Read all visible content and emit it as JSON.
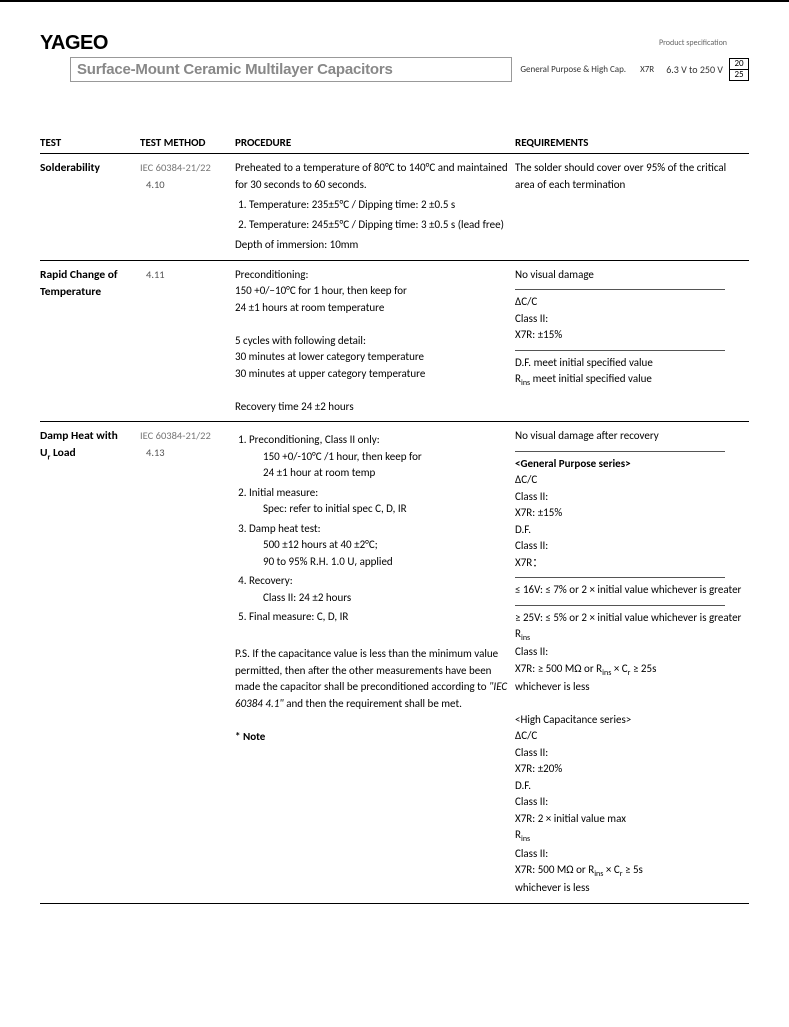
{
  "header": {
    "logo": "YAGEO",
    "title": "Surface-Mount Ceramic Multilayer Capacitors",
    "subtitle": "General Purpose & High Cap.",
    "cap_type": "X7R",
    "voltage": "6.3 V to 250 V",
    "product_spec_label": "Product specification",
    "page_num": "20",
    "page_total": "25"
  },
  "columns": {
    "test": "TEST",
    "method": "TEST METHOD",
    "procedure": "PROCEDURE",
    "requirements": "REQUIREMENTS"
  },
  "rows": [
    {
      "test": "Solderability",
      "method_std": "IEC 60384-21/22",
      "method_num": "4.10",
      "procedure": {
        "intro": "Preheated to a temperature of 80°C to 140°C and maintained for 30 seconds to 60 seconds.",
        "l1": "Temperature: 235±5°C / Dipping time: 2 ±0.5 s",
        "l2": "Temperature: 245±5°C / Dipping time: 3 ±0.5 s (lead free)",
        "depth": "Depth of immersion: 10mm"
      },
      "requirements": {
        "r1": "The solder should cover over 95% of the critical area of each termination"
      }
    },
    {
      "test": "Rapid Change of Temperature",
      "method_std": "",
      "method_num": "4.11",
      "procedure": {
        "pre_label": "Preconditioning:",
        "pre1": "150 +0/−10°C for 1 hour, then keep for",
        "pre2": "24 ±1 hours at room temperature",
        "cycles": "5 cycles with following detail:",
        "c1": "30 minutes at lower category temperature",
        "c2": "30 minutes at upper category temperature",
        "recovery": "Recovery time 24 ±2 hours"
      },
      "requirements": {
        "r1": "No visual damage",
        "dc": "ΔC/C",
        "cls": "Class II:",
        "x7r": "X7R: ±15%",
        "df": "D.F. meet initial specified value",
        "rins_lbl": "R",
        "rins_rest": " meet initial specified value"
      }
    },
    {
      "test": "Damp Heat with Uᵣ Load",
      "test_a": "Damp Heat with",
      "test_b": "U",
      "test_c": " Load",
      "method_std": "IEC 60384-21/22",
      "method_num": "4.13",
      "procedure": {
        "n1": "Preconditioning, Class II only:",
        "n1a": "150 +0/-10°C /1 hour, then keep for",
        "n1b": "24 ±1 hour at room temp",
        "n2": "Initial measure:",
        "n2a": "Spec: refer to initial spec C, D, IR",
        "n3": "Damp heat test:",
        "n3a": "500 ±12 hours at 40 ±2°C;",
        "n3b": "90 to 95% R.H. 1.0 Uᵣ applied",
        "n4": "Recovery:",
        "n4a": "Class II: 24 ±2 hours",
        "n5": "Final measure: C, D, IR",
        "ps": "P.S. If the capacitance value is less than the minimum value permitted, then after the other measurements have been made the capacitor shall be preconditioned according to ",
        "ps_ital": "\"IEC 60384 4.1\"",
        "ps_end": " and then the requirement shall be met.",
        "note": "* Note"
      },
      "requirements": {
        "r1": "No visual damage after recovery",
        "gp_hdr": "<General Purpose series>",
        "dc": "ΔC/C",
        "cls": "Class II:",
        "x7r15": "X7R: ±15%",
        "df": "D.F.",
        "x7r_colon": "X7R：",
        "le16": "≤ 16V: ≤ 7% or 2 × initial value whichever is greater",
        "ge25": "≥ 25V: ≤ 5% or 2 × initial value whichever is greater",
        "rins": "R",
        "x7r500": "X7R: ≥ 500 MΩ or R",
        "x7r500b": " × C",
        "x7r500c": " ≥ 25s",
        "whichless": "whichever is less",
        "hc_hdr": "<High Capacitance series>",
        "x7r20": "X7R: ±20%",
        "x7r2x": "X7R: 2 × initial value max",
        "x7r5s_a": "X7R: 500 MΩ or R",
        "x7r5s_b": " × C",
        "x7r5s_c": " ≥ 5s"
      }
    }
  ],
  "colors": {
    "text": "#000000",
    "muted": "#777777",
    "title_gray": "#888888",
    "border": "#000000"
  }
}
